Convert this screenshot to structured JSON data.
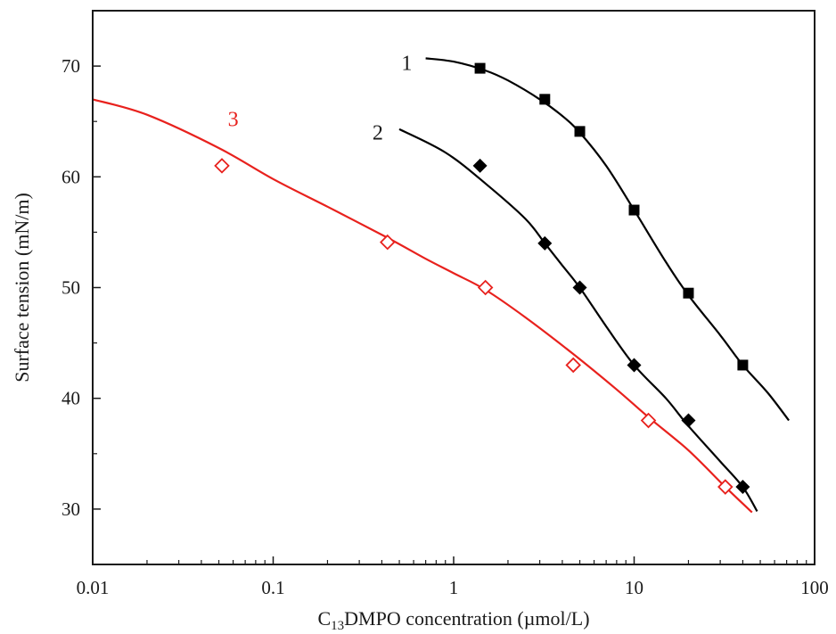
{
  "chart_data": {
    "type": "scatter",
    "title": "",
    "xlabel": {
      "prefix": "C",
      "subscript": "13",
      "suffix": "DMPO concentration (µmol/L)"
    },
    "ylabel": "Surface tension (mN/m)",
    "x_scale": "log",
    "xlim": [
      0.01,
      100
    ],
    "ylim": [
      25,
      75
    ],
    "x_ticks": [
      0.01,
      0.1,
      1,
      10,
      100
    ],
    "x_tick_labels": [
      "0.01",
      "0.1",
      "1",
      "10",
      "100"
    ],
    "y_ticks": [
      30,
      40,
      50,
      60,
      70
    ],
    "y_tick_labels": [
      "30",
      "40",
      "50",
      "60",
      "70"
    ],
    "grid": false,
    "legend": "none",
    "series": [
      {
        "label": "1",
        "color": "#000000",
        "marker": "square-filled",
        "points": {
          "x": [
            1.4,
            3.2,
            5.0,
            10.0,
            20.0,
            40.0
          ],
          "y": [
            69.8,
            67.0,
            64.1,
            57.0,
            49.5,
            43.0
          ]
        },
        "fit": {
          "x": [
            0.7,
            1.0,
            1.5,
            2.0,
            3.0,
            4.0,
            5.0,
            7.0,
            10.0,
            15.0,
            20.0,
            30.0,
            40.0,
            55.0,
            72.0
          ],
          "y": [
            70.7,
            70.4,
            69.6,
            68.7,
            67.0,
            65.5,
            64.0,
            61.0,
            57.0,
            52.3,
            49.3,
            45.7,
            43.0,
            40.5,
            38.0
          ]
        },
        "label_at": [
          0.55,
          70.3
        ]
      },
      {
        "label": "2",
        "color": "#000000",
        "marker": "diamond-filled",
        "points": {
          "x": [
            1.4,
            3.2,
            5.0,
            10.0,
            20.0,
            40.0
          ],
          "y": [
            61.0,
            54.0,
            50.0,
            43.0,
            38.0,
            32.0
          ]
        },
        "fit": {
          "x": [
            0.5,
            0.9,
            1.5,
            2.5,
            3.2,
            4.0,
            5.0,
            7.0,
            10.0,
            15.0,
            20.0,
            30.0,
            40.0,
            48.0
          ],
          "y": [
            64.3,
            62.2,
            59.4,
            56.2,
            54.0,
            52.0,
            50.0,
            46.5,
            43.0,
            40.0,
            37.5,
            34.3,
            32.0,
            29.8
          ]
        },
        "label_at": [
          0.38,
          64.0
        ]
      },
      {
        "label": "3",
        "color": "#e8211d",
        "marker": "diamond-open",
        "points": {
          "x": [
            0.052,
            0.43,
            1.5,
            4.6,
            12.0,
            32.0
          ],
          "y": [
            61.0,
            54.1,
            50.0,
            43.0,
            38.0,
            32.0
          ]
        },
        "fit": {
          "x": [
            0.01,
            0.02,
            0.05,
            0.1,
            0.2,
            0.43,
            0.7,
            1.0,
            1.5,
            2.5,
            4.6,
            8.0,
            12.0,
            20.0,
            32.0,
            45.0
          ],
          "y": [
            67.0,
            65.6,
            62.6,
            59.8,
            57.3,
            54.5,
            52.6,
            51.3,
            49.8,
            47.3,
            44.0,
            40.8,
            38.3,
            35.3,
            32.0,
            29.7
          ]
        },
        "label_at": [
          0.06,
          65.2
        ]
      }
    ]
  }
}
